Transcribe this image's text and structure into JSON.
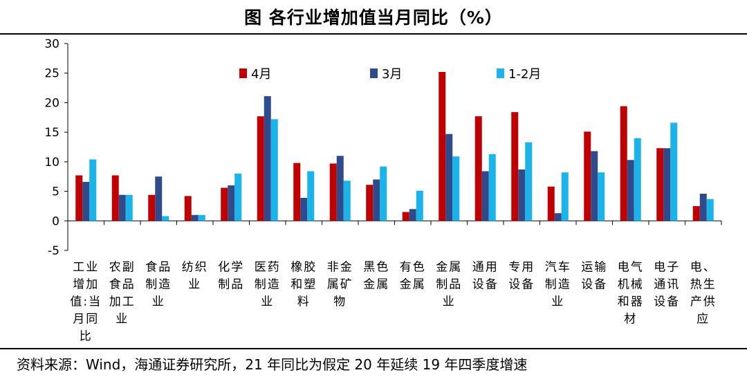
{
  "title": "图  各行业增加值当月同比（%）",
  "source": "资料来源：Wind，海通证券研究所，21 年同比为假定 20 年延续 19 年四季度增速",
  "colors": {
    "4月": "#c00000",
    "3月": "#2f4b8c",
    "1-2月": "#1ab4ea"
  },
  "chart_data": {
    "type": "bar",
    "ylim": [
      -5,
      30
    ],
    "yticks": [
      -5,
      0,
      5,
      10,
      15,
      20,
      25,
      30
    ],
    "legend_position": "top",
    "categories": [
      "工业增加值:当月同比",
      "农副食品加工业",
      "食品制造业",
      "纺织业",
      "化学制品",
      "医药制造业",
      "橡胶和塑料",
      "非金属矿物",
      "黑色金属",
      "有色金属",
      "金属制品业",
      "通用设备",
      "专用设备",
      "汽车制造业",
      "运输设备",
      "电气机械和器材",
      "电子通讯设备",
      "电、热生产供应"
    ],
    "category_labels": [
      [
        "工业",
        "增加",
        "值:当",
        "月同",
        "比"
      ],
      [
        "农副",
        "食品",
        "加工",
        "业"
      ],
      [
        "食品",
        "制造",
        "业"
      ],
      [
        "纺织",
        "业"
      ],
      [
        "化学",
        "制品"
      ],
      [
        "医药",
        "制造",
        "业"
      ],
      [
        "橡胶",
        "和塑",
        "料"
      ],
      [
        "非金",
        "属矿",
        "物"
      ],
      [
        "黑色",
        "金属"
      ],
      [
        "有色",
        "金属"
      ],
      [
        "金属",
        "制品",
        "业"
      ],
      [
        "通用",
        "设备"
      ],
      [
        "专用",
        "设备"
      ],
      [
        "汽车",
        "制造",
        "业"
      ],
      [
        "运输",
        "设备"
      ],
      [
        "电气",
        "机械",
        "和器",
        "材"
      ],
      [
        "电子",
        "通讯",
        "设备"
      ],
      [
        "电、",
        "热生",
        "产供",
        "应"
      ]
    ],
    "series": [
      {
        "name": "4月",
        "values": [
          7.7,
          7.7,
          4.4,
          4.2,
          5.6,
          17.7,
          9.8,
          9.7,
          6.1,
          1.5,
          25.2,
          17.7,
          18.4,
          5.8,
          15.1,
          19.4,
          12.3,
          2.5
        ]
      },
      {
        "name": "3月",
        "values": [
          6.6,
          4.4,
          7.5,
          1.0,
          6.0,
          21.1,
          3.9,
          11.0,
          7.0,
          2.0,
          14.7,
          8.4,
          8.7,
          1.3,
          11.8,
          10.3,
          12.3,
          4.6
        ]
      },
      {
        "name": "1-2月",
        "values": [
          10.4,
          4.4,
          0.8,
          1.0,
          8.0,
          17.2,
          8.4,
          6.8,
          9.2,
          5.1,
          10.9,
          11.3,
          13.3,
          8.2,
          8.2,
          14.0,
          16.6,
          3.7
        ]
      }
    ]
  }
}
